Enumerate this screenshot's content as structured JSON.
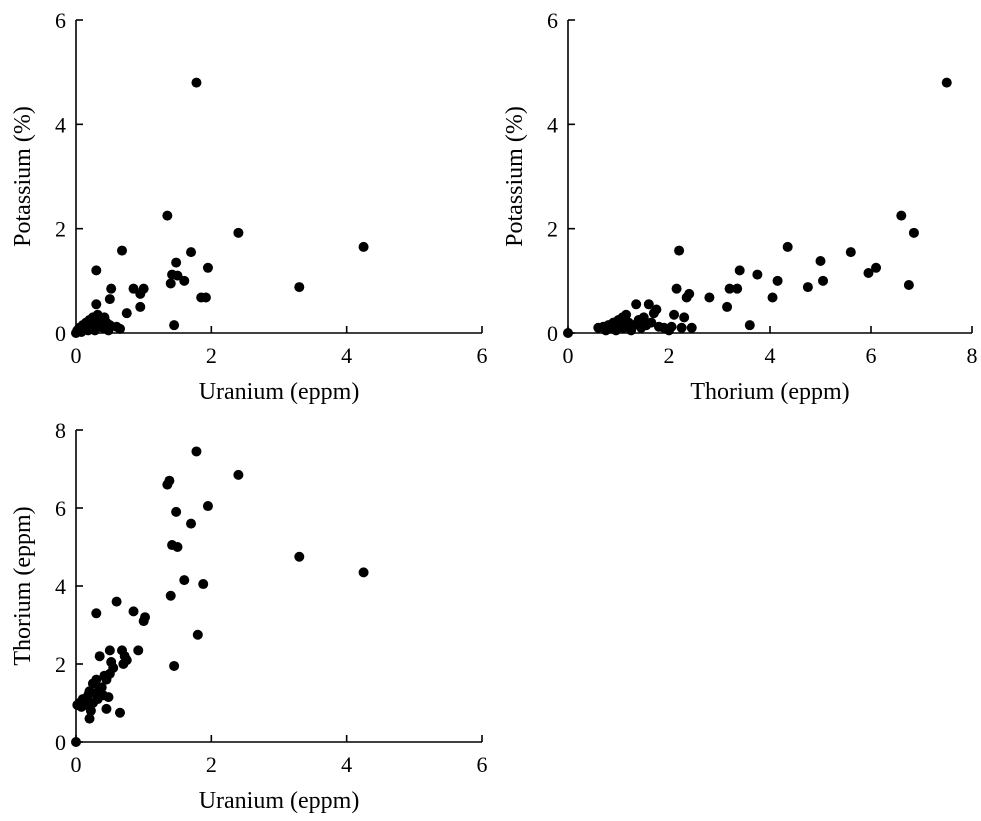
{
  "chart_data": [
    {
      "type": "scatter",
      "xlabel": "Uranium (eppm)",
      "ylabel": "Potassium (%)",
      "xlim": [
        0,
        6
      ],
      "ylim": [
        0,
        6
      ],
      "xticks": [
        0,
        2,
        4,
        6
      ],
      "yticks": [
        0,
        2,
        4,
        6
      ],
      "points": [
        [
          0,
          0
        ],
        [
          0.02,
          0.05
        ],
        [
          0.05,
          0.1
        ],
        [
          0.08,
          0.02
        ],
        [
          0.1,
          0.15
        ],
        [
          0.12,
          0.08
        ],
        [
          0.15,
          0.2
        ],
        [
          0.18,
          0.05
        ],
        [
          0.2,
          0.25
        ],
        [
          0.22,
          0.12
        ],
        [
          0.25,
          0.3
        ],
        [
          0.25,
          0.1
        ],
        [
          0.28,
          0.05
        ],
        [
          0.3,
          0.2
        ],
        [
          0.3,
          0.55
        ],
        [
          0.32,
          0.35
        ],
        [
          0.35,
          0.15
        ],
        [
          0.38,
          0.25
        ],
        [
          0.4,
          0.1
        ],
        [
          0.42,
          0.3
        ],
        [
          0.45,
          0.2
        ],
        [
          0.48,
          0.05
        ],
        [
          0.5,
          0.15
        ],
        [
          0.5,
          0.65
        ],
        [
          0.52,
          0.85
        ],
        [
          0.6,
          0.12
        ],
        [
          0.65,
          0.08
        ],
        [
          0.3,
          1.2
        ],
        [
          0.68,
          1.58
        ],
        [
          0.75,
          0.38
        ],
        [
          0.85,
          0.85
        ],
        [
          0.95,
          0.5
        ],
        [
          0.95,
          0.75
        ],
        [
          1.0,
          0.85
        ],
        [
          1.35,
          2.25
        ],
        [
          1.4,
          0.95
        ],
        [
          1.42,
          1.12
        ],
        [
          1.45,
          0.15
        ],
        [
          1.48,
          1.35
        ],
        [
          1.5,
          1.1
        ],
        [
          1.6,
          1.0
        ],
        [
          1.7,
          1.55
        ],
        [
          1.78,
          4.8
        ],
        [
          1.85,
          0.68
        ],
        [
          1.92,
          0.68
        ],
        [
          1.95,
          1.25
        ],
        [
          2.4,
          1.92
        ],
        [
          3.3,
          0.88
        ],
        [
          4.25,
          1.65
        ]
      ]
    },
    {
      "type": "scatter",
      "xlabel": "Thorium (eppm)",
      "ylabel": "Potassium (%)",
      "xlim": [
        0,
        8
      ],
      "ylim": [
        0,
        6
      ],
      "xticks": [
        0,
        2,
        4,
        6,
        8
      ],
      "yticks": [
        0,
        2,
        4,
        6
      ],
      "points": [
        [
          0,
          0
        ],
        [
          0.6,
          0.1
        ],
        [
          0.7,
          0.12
        ],
        [
          0.75,
          0.05
        ],
        [
          0.8,
          0.15
        ],
        [
          0.85,
          0.1
        ],
        [
          0.9,
          0.2
        ],
        [
          0.95,
          0.05
        ],
        [
          1.0,
          0.25
        ],
        [
          1.05,
          0.15
        ],
        [
          1.08,
          0.3
        ],
        [
          1.1,
          0.1
        ],
        [
          1.15,
          0.35
        ],
        [
          1.2,
          0.2
        ],
        [
          1.25,
          0.05
        ],
        [
          1.3,
          0.15
        ],
        [
          1.35,
          0.55
        ],
        [
          1.4,
          0.25
        ],
        [
          1.45,
          0.1
        ],
        [
          1.5,
          0.3
        ],
        [
          1.55,
          0.15
        ],
        [
          1.6,
          0.55
        ],
        [
          1.65,
          0.2
        ],
        [
          1.7,
          0.38
        ],
        [
          1.75,
          0.45
        ],
        [
          1.8,
          0.12
        ],
        [
          1.9,
          0.1
        ],
        [
          2.0,
          0.05
        ],
        [
          2.05,
          0.12
        ],
        [
          2.1,
          0.35
        ],
        [
          2.15,
          0.85
        ],
        [
          2.2,
          1.58
        ],
        [
          2.25,
          0.1
        ],
        [
          2.3,
          0.3
        ],
        [
          2.35,
          0.68
        ],
        [
          2.4,
          0.75
        ],
        [
          2.45,
          0.1
        ],
        [
          2.8,
          0.68
        ],
        [
          3.15,
          0.5
        ],
        [
          3.2,
          0.85
        ],
        [
          3.35,
          0.85
        ],
        [
          3.4,
          1.2
        ],
        [
          3.6,
          0.15
        ],
        [
          3.75,
          1.12
        ],
        [
          4.05,
          0.68
        ],
        [
          4.15,
          1.0
        ],
        [
          4.35,
          1.65
        ],
        [
          4.75,
          0.88
        ],
        [
          5.0,
          1.38
        ],
        [
          5.05,
          1.0
        ],
        [
          5.6,
          1.55
        ],
        [
          5.95,
          1.15
        ],
        [
          6.1,
          1.25
        ],
        [
          6.6,
          2.25
        ],
        [
          6.75,
          0.92
        ],
        [
          6.85,
          1.92
        ],
        [
          7.5,
          4.8
        ]
      ]
    },
    {
      "type": "scatter",
      "xlabel": "Uranium (eppm)",
      "ylabel": "Thorium (eppm)",
      "xlim": [
        0,
        6
      ],
      "ylim": [
        0,
        8
      ],
      "xticks": [
        0,
        2,
        4,
        6
      ],
      "yticks": [
        0,
        2,
        4,
        6,
        8
      ],
      "points": [
        [
          0,
          0
        ],
        [
          0.02,
          0.95
        ],
        [
          0.05,
          1.0
        ],
        [
          0.08,
          0.9
        ],
        [
          0.1,
          1.1
        ],
        [
          0.12,
          1.05
        ],
        [
          0.15,
          0.95
        ],
        [
          0.18,
          1.2
        ],
        [
          0.2,
          0.6
        ],
        [
          0.2,
          1.3
        ],
        [
          0.22,
          0.8
        ],
        [
          0.25,
          1.5
        ],
        [
          0.25,
          1.0
        ],
        [
          0.28,
          1.25
        ],
        [
          0.3,
          3.3
        ],
        [
          0.3,
          1.6
        ],
        [
          0.32,
          1.1
        ],
        [
          0.35,
          1.35
        ],
        [
          0.35,
          2.2
        ],
        [
          0.38,
          1.4
        ],
        [
          0.4,
          1.2
        ],
        [
          0.42,
          1.7
        ],
        [
          0.45,
          1.6
        ],
        [
          0.45,
          0.85
        ],
        [
          0.48,
          1.15
        ],
        [
          0.5,
          1.75
        ],
        [
          0.5,
          2.35
        ],
        [
          0.52,
          2.05
        ],
        [
          0.55,
          1.9
        ],
        [
          0.6,
          3.6
        ],
        [
          0.65,
          0.75
        ],
        [
          0.68,
          2.35
        ],
        [
          0.7,
          2.0
        ],
        [
          0.72,
          2.2
        ],
        [
          0.75,
          2.1
        ],
        [
          0.85,
          3.35
        ],
        [
          0.92,
          2.35
        ],
        [
          1.0,
          3.1
        ],
        [
          1.02,
          3.2
        ],
        [
          1.35,
          6.6
        ],
        [
          1.38,
          6.7
        ],
        [
          1.4,
          3.75
        ],
        [
          1.42,
          5.05
        ],
        [
          1.45,
          1.95
        ],
        [
          1.48,
          5.9
        ],
        [
          1.5,
          5.0
        ],
        [
          1.6,
          4.15
        ],
        [
          1.7,
          5.6
        ],
        [
          1.78,
          7.45
        ],
        [
          1.8,
          2.75
        ],
        [
          1.88,
          4.05
        ],
        [
          1.95,
          6.05
        ],
        [
          2.4,
          6.85
        ],
        [
          3.3,
          4.75
        ],
        [
          4.25,
          4.35
        ]
      ]
    }
  ]
}
